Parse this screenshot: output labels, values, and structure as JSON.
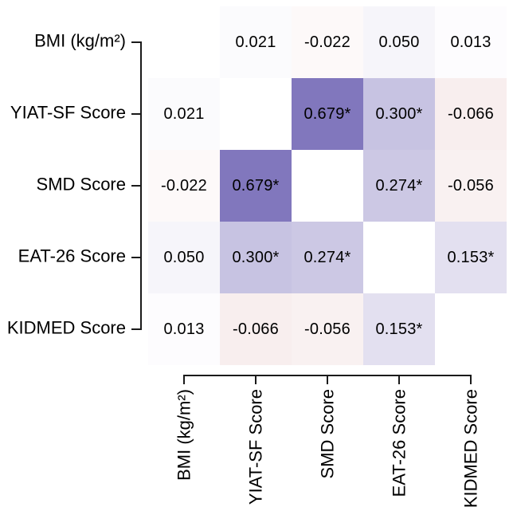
{
  "chart_data": {
    "type": "heatmap",
    "subtype": "correlation-matrix",
    "title": "",
    "variables": [
      "BMI (kg/m²)",
      "YIAT-SF Score",
      "SMD Score",
      "EAT-26 Score",
      "KIDMED Score"
    ],
    "values": [
      [
        null,
        0.021,
        -0.022,
        0.05,
        0.013
      ],
      [
        0.021,
        null,
        0.679,
        0.3,
        -0.066
      ],
      [
        -0.022,
        0.679,
        null,
        0.274,
        -0.056
      ],
      [
        0.05,
        0.3,
        0.274,
        null,
        0.153
      ],
      [
        0.013,
        -0.066,
        -0.056,
        0.153,
        null
      ]
    ],
    "cell_labels": [
      [
        "",
        "0.021",
        "-0.022",
        "0.050",
        "0.013"
      ],
      [
        "0.021",
        "",
        "0.679*",
        "0.300*",
        "-0.066"
      ],
      [
        "-0.022",
        "0.679*",
        "",
        "0.274*",
        "-0.056"
      ],
      [
        "0.050",
        "0.300*",
        "0.274*",
        "",
        "0.153*"
      ],
      [
        "0.013",
        "-0.066",
        "-0.056",
        "0.153*",
        ""
      ]
    ],
    "significance_marker": "*",
    "colormap": {
      "positive_end": "#45379E",
      "negative_end": "#950000",
      "zero": "#FFFFFF",
      "range": [
        -1,
        1
      ]
    },
    "axis_color": "#1A1A1A",
    "text_color": "#000000",
    "grid": false,
    "legend": "none",
    "diagonal": "blank"
  }
}
